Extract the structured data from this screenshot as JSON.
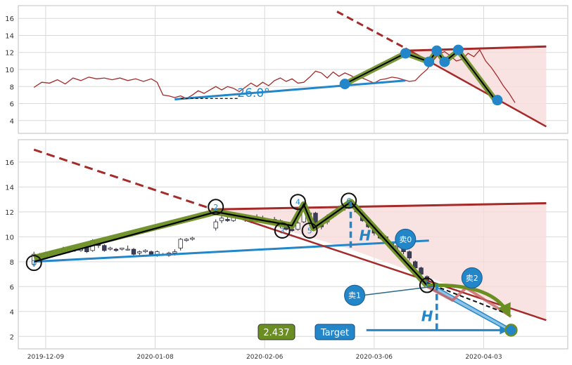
{
  "chart_data": {
    "type": "line",
    "x_ticks": [
      "2019-12-09",
      "2020-01-08",
      "2020-02-06",
      "2020-03-06",
      "2020-04-03"
    ],
    "top_panel": {
      "yticks": [
        4,
        6,
        8,
        10,
        12,
        14,
        16
      ],
      "ylim": [
        2.5,
        17.5
      ],
      "grid": true,
      "angle_label": "26.0°",
      "price_line": [
        [
          8,
          7.9
        ],
        [
          12,
          8.5
        ],
        [
          16,
          8.4
        ],
        [
          20,
          8.8
        ],
        [
          24,
          8.3
        ],
        [
          28,
          9.0
        ],
        [
          32,
          8.7
        ],
        [
          36,
          9.1
        ],
        [
          40,
          8.9
        ],
        [
          44,
          9.0
        ],
        [
          48,
          8.8
        ],
        [
          52,
          9.0
        ],
        [
          56,
          8.7
        ],
        [
          60,
          8.9
        ],
        [
          64,
          8.6
        ],
        [
          68,
          8.9
        ],
        [
          71,
          8.5
        ],
        [
          74,
          7.0
        ],
        [
          77,
          6.9
        ],
        [
          80,
          6.7
        ],
        [
          83,
          6.9
        ],
        [
          86,
          6.6
        ],
        [
          89,
          7.0
        ],
        [
          92,
          7.5
        ],
        [
          95,
          7.2
        ],
        [
          98,
          7.6
        ],
        [
          101,
          8.0
        ],
        [
          104,
          7.6
        ],
        [
          107,
          8.0
        ],
        [
          110,
          7.8
        ],
        [
          113,
          7.4
        ],
        [
          116,
          7.9
        ],
        [
          119,
          8.4
        ],
        [
          122,
          8.0
        ],
        [
          125,
          8.5
        ],
        [
          128,
          8.1
        ],
        [
          131,
          8.7
        ],
        [
          134,
          9.0
        ],
        [
          137,
          8.6
        ],
        [
          140,
          8.9
        ],
        [
          143,
          8.4
        ],
        [
          146,
          8.5
        ],
        [
          149,
          9.1
        ],
        [
          152,
          9.8
        ],
        [
          155,
          9.6
        ],
        [
          158,
          9.0
        ],
        [
          161,
          9.7
        ],
        [
          164,
          9.2
        ],
        [
          167,
          9.6
        ],
        [
          170,
          9.3
        ],
        [
          173,
          8.9
        ],
        [
          176,
          9.0
        ],
        [
          179,
          8.7
        ],
        [
          182,
          8.4
        ],
        [
          185,
          8.8
        ],
        [
          188,
          8.9
        ],
        [
          191,
          9.1
        ],
        [
          194,
          9.0
        ],
        [
          197,
          8.8
        ],
        [
          200,
          8.6
        ],
        [
          203,
          8.7
        ],
        [
          206,
          9.4
        ],
        [
          209,
          10.0
        ],
        [
          212,
          11.0
        ],
        [
          215,
          11.8
        ],
        [
          218,
          12.1
        ],
        [
          221,
          11.6
        ],
        [
          224,
          11.0
        ],
        [
          227,
          11.2
        ],
        [
          230,
          11.9
        ],
        [
          233,
          11.5
        ],
        [
          236,
          12.3
        ],
        [
          239,
          11.0
        ],
        [
          242,
          10.2
        ],
        [
          245,
          9.2
        ],
        [
          248,
          8.1
        ],
        [
          251,
          7.2
        ],
        [
          254,
          6.1
        ]
      ],
      "green_path": [
        [
          167,
          8.3
        ],
        [
          198,
          11.9
        ],
        [
          210,
          10.9
        ],
        [
          214,
          12.2
        ],
        [
          218,
          10.9
        ],
        [
          225,
          12.2
        ],
        [
          245,
          6.1
        ]
      ],
      "blue_dots": [
        [
          167,
          8.3
        ],
        [
          198,
          11.9
        ],
        [
          210,
          10.9
        ],
        [
          214,
          12.2
        ],
        [
          218,
          10.9
        ],
        [
          225,
          12.3
        ],
        [
          245,
          6.4
        ]
      ],
      "support_line": [
        [
          80,
          6.5
        ],
        [
          198,
          8.7
        ]
      ],
      "resistance_line": [
        [
          198,
          12.2
        ],
        [
          270,
          12.7
        ]
      ],
      "falling_line": [
        [
          163,
          16.8
        ],
        [
          270,
          3.3
        ]
      ],
      "dashed_baseline": [
        [
          83,
          6.6
        ],
        [
          113,
          6.6
        ]
      ]
    },
    "bottom_panel": {
      "yticks": [
        2,
        4,
        6,
        8,
        10,
        12,
        14,
        16
      ],
      "ylim": [
        1.0,
        17.8
      ],
      "grid": true,
      "candles": [
        [
          8,
          7.8,
          8.6,
          7.6,
          8.8
        ],
        [
          11,
          8.4,
          8.6,
          8.3,
          8.7
        ],
        [
          14,
          8.4,
          8.7,
          8.3,
          8.8
        ],
        [
          17,
          8.6,
          8.8,
          8.5,
          8.9
        ],
        [
          20,
          8.7,
          8.9,
          8.6,
          9.0
        ],
        [
          23,
          8.8,
          9.0,
          8.7,
          9.2
        ],
        [
          26,
          8.8,
          9.1,
          8.7,
          9.2
        ],
        [
          29,
          9.0,
          9.0,
          8.8,
          9.1
        ],
        [
          32,
          8.9,
          9.0,
          8.8,
          9.1
        ],
        [
          35,
          9.2,
          8.8,
          8.7,
          9.3
        ],
        [
          38,
          8.9,
          9.7,
          8.8,
          9.8
        ],
        [
          41,
          9.5,
          9.3,
          9.1,
          9.6
        ],
        [
          44,
          9.3,
          8.9,
          8.8,
          9.4
        ],
        [
          47,
          9.0,
          9.1,
          8.9,
          9.2
        ],
        [
          50,
          9.0,
          8.9,
          8.8,
          9.1
        ],
        [
          53,
          9.0,
          9.1,
          8.9,
          9.1
        ],
        [
          56,
          9.0,
          9.0,
          8.9,
          9.3
        ],
        [
          59,
          9.0,
          8.6,
          8.5,
          9.1
        ],
        [
          62,
          8.7,
          8.8,
          8.5,
          8.9
        ],
        [
          65,
          8.8,
          8.9,
          8.7,
          9.0
        ],
        [
          68,
          8.8,
          8.6,
          8.5,
          8.9
        ],
        [
          71,
          8.6,
          8.8,
          8.4,
          8.9
        ],
        [
          74,
          8.6,
          8.6,
          8.5,
          8.7
        ],
        [
          77,
          8.5,
          8.7,
          8.4,
          8.8
        ],
        [
          80,
          8.7,
          8.8,
          8.5,
          9.0
        ],
        [
          83,
          9.1,
          9.8,
          8.9,
          9.9
        ],
        [
          86,
          9.7,
          9.8,
          9.6,
          9.9
        ],
        [
          89,
          9.8,
          9.9,
          9.7,
          10.0
        ],
        [
          101,
          10.7,
          11.2,
          10.5,
          11.4
        ],
        [
          104,
          11.3,
          11.5,
          11.1,
          11.7
        ],
        [
          107,
          11.4,
          11.3,
          11.2,
          11.6
        ],
        [
          110,
          11.3,
          11.7,
          11.2,
          11.9
        ],
        [
          113,
          11.7,
          11.5,
          11.4,
          11.9
        ],
        [
          116,
          11.6,
          11.4,
          11.2,
          11.7
        ],
        [
          119,
          11.4,
          11.2,
          11.1,
          11.5
        ],
        [
          122,
          11.3,
          11.5,
          11.2,
          11.8
        ],
        [
          125,
          11.5,
          11.3,
          11.2,
          11.7
        ],
        [
          128,
          11.3,
          11.3,
          11.2,
          11.4
        ],
        [
          131,
          11.3,
          11.4,
          11.2,
          11.6
        ],
        [
          134,
          11.3,
          10.9,
          10.7,
          11.4
        ],
        [
          137,
          11.0,
          10.6,
          10.5,
          11.1
        ],
        [
          140,
          10.6,
          10.5,
          10.4,
          10.9
        ],
        [
          143,
          10.6,
          11.1,
          10.5,
          11.3
        ],
        [
          146,
          11.2,
          12.2,
          11.1,
          12.4
        ],
        [
          149,
          11.8,
          11.9,
          11.6,
          12.0
        ],
        [
          152,
          11.9,
          11.0,
          10.8,
          12.0
        ],
        [
          155,
          11.0,
          10.8,
          10.6,
          11.1
        ],
        [
          158,
          11.2,
          11.6,
          11.0,
          11.8
        ],
        [
          161,
          11.7,
          11.9,
          11.5,
          12.0
        ],
        [
          164,
          12.0,
          12.3,
          11.9,
          12.5
        ],
        [
          167,
          12.3,
          12.5,
          12.1,
          12.6
        ],
        [
          170,
          12.5,
          12.6,
          12.3,
          12.8
        ],
        [
          173,
          12.4,
          12.0,
          11.9,
          12.5
        ],
        [
          176,
          11.9,
          11.3,
          11.2,
          12.0
        ],
        [
          179,
          11.3,
          10.8,
          10.7,
          11.4
        ],
        [
          182,
          10.9,
          10.3,
          10.1,
          11.0
        ],
        [
          185,
          10.3,
          9.9,
          9.8,
          10.4
        ],
        [
          188,
          10.0,
          9.6,
          9.4,
          10.1
        ],
        [
          191,
          9.5,
          9.1,
          9.0,
          9.6
        ],
        [
          194,
          9.2,
          9.3,
          9.0,
          9.4
        ],
        [
          197,
          9.3,
          8.8,
          8.6,
          9.4
        ],
        [
          200,
          8.8,
          8.3,
          8.1,
          8.9
        ],
        [
          203,
          8.0,
          7.5,
          7.3,
          8.1
        ],
        [
          206,
          7.5,
          7.0,
          6.8,
          7.6
        ],
        [
          209,
          6.8,
          6.3,
          6.1,
          6.9
        ],
        [
          212,
          6.2,
          5.8,
          5.7,
          6.4
        ]
      ],
      "green_path": [
        [
          8,
          8.3
        ],
        [
          101,
          12.0
        ],
        [
          140,
          10.9
        ],
        [
          146,
          12.6
        ],
        [
          151,
          10.7
        ],
        [
          170,
          12.8
        ],
        [
          209,
          6.1
        ]
      ],
      "black_path": [
        [
          8,
          8.0
        ],
        [
          101,
          12.0
        ],
        [
          140,
          10.9
        ],
        [
          146,
          12.6
        ],
        [
          151,
          10.7
        ],
        [
          170,
          12.8
        ],
        [
          209,
          6.1
        ]
      ],
      "green_arrow": [
        [
          209,
          6.1
        ],
        [
          217,
          6.1
        ],
        [
          240,
          5.5
        ],
        [
          252,
          3.6
        ]
      ],
      "red_projection": [
        [
          209,
          6.0
        ],
        [
          222,
          4.9
        ],
        [
          229,
          5.9
        ],
        [
          252,
          3.6
        ]
      ],
      "black_dashed": [
        [
          209,
          6.3
        ],
        [
          252,
          3.7
        ]
      ],
      "blue_wedge": [
        [
          209,
          6.3
        ],
        [
          252,
          2.4
        ]
      ],
      "support_line": [
        [
          8,
          8.0
        ],
        [
          210,
          9.7
        ]
      ],
      "resistance_line": [
        [
          101,
          12.2
        ],
        [
          270,
          12.7
        ]
      ],
      "falling_line": [
        [
          8,
          17.0
        ],
        [
          270,
          3.3
        ]
      ],
      "falling_dashed_until": 101,
      "target_line": [
        [
          178,
          2.5
        ],
        [
          252,
          2.5
        ]
      ],
      "target_point": [
        252,
        2.5
      ],
      "h_left": {
        "x": 170,
        "top": 12.8,
        "bottom": 8.9
      },
      "h_right": {
        "x": 214,
        "top": 6.2,
        "bottom": 2.5
      },
      "pivots": [
        {
          "label": "1",
          "x": 8,
          "y": 7.9
        },
        {
          "label": "2",
          "x": 101,
          "y": 12.4
        },
        {
          "label": "3",
          "x": 135,
          "y": 10.5
        },
        {
          "label": "4",
          "x": 143,
          "y": 12.8
        },
        {
          "label": "5",
          "x": 149,
          "y": 10.5
        },
        {
          "label": "6",
          "x": 169,
          "y": 12.9
        }
      ],
      "signals": [
        {
          "label": "卖0",
          "x": 198,
          "y": 9.8
        },
        {
          "label": "卖1",
          "x": 172,
          "y": 5.3
        },
        {
          "label": "卖2",
          "x": 232,
          "y": 6.7
        }
      ],
      "sell1_pointer": [
        [
          176,
          5.3
        ],
        [
          212,
          6.0
        ]
      ],
      "measure_label": "H",
      "target_value": "2.437",
      "target_label": "Target"
    },
    "colors": {
      "grid": "#d9d9d9",
      "price": "#a52a2a",
      "trend_red": "#a52a2a",
      "fill_red": "#f8dcdb",
      "blue": "#2386c8",
      "olive": "#6b8e23",
      "black": "#000000"
    }
  }
}
